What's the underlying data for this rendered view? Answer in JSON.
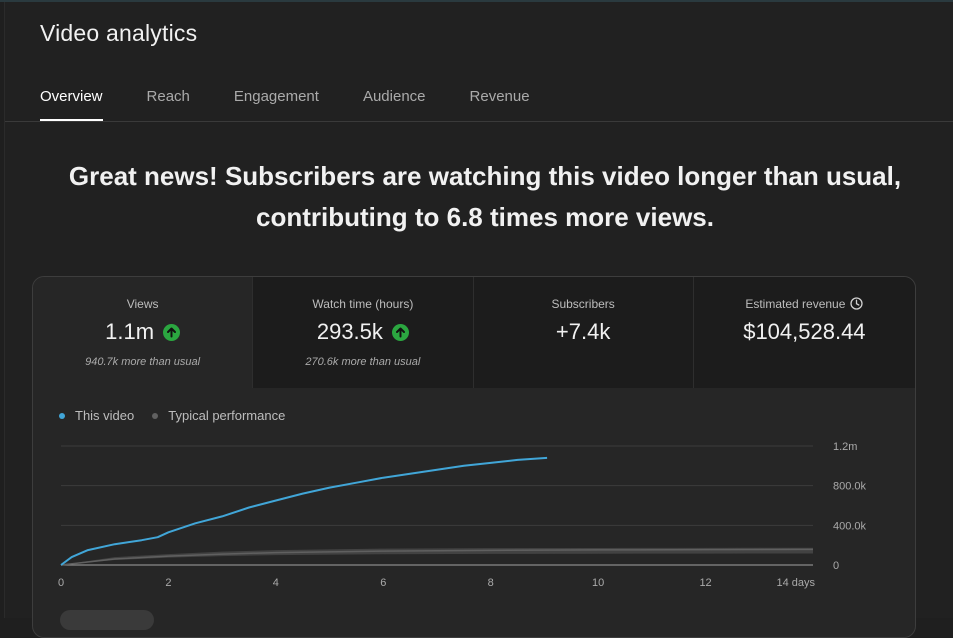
{
  "page": {
    "title": "Video analytics"
  },
  "tabs": [
    {
      "label": "Overview",
      "active": true
    },
    {
      "label": "Reach",
      "active": false
    },
    {
      "label": "Engagement",
      "active": false
    },
    {
      "label": "Audience",
      "active": false
    },
    {
      "label": "Revenue",
      "active": false
    }
  ],
  "headline": "Great news! Subscribers are watching this video longer than usual, contributing to 6.8 times more views.",
  "metrics": [
    {
      "label": "Views",
      "value": "1.1m",
      "trend_icon": "arrow-up-circle-icon",
      "note": "940.7k more than usual"
    },
    {
      "label": "Watch time (hours)",
      "value": "293.5k",
      "trend_icon": "arrow-up-circle-icon",
      "note": "270.6k more than usual"
    },
    {
      "label": "Subscribers",
      "value": "+7.4k"
    },
    {
      "label": "Estimated revenue",
      "value": "$104,528.44",
      "icon": "clock-icon"
    }
  ],
  "colors": {
    "accent": "#2ba640",
    "this_video": "#41a6d8",
    "typical": "#606060",
    "background": "#212121"
  },
  "chart_data": {
    "type": "line",
    "title": "",
    "xlabel": "",
    "ylabel": "",
    "x_unit": "days",
    "xlim": [
      0,
      14
    ],
    "ylim": [
      0,
      1200000
    ],
    "x_ticks": [
      "0",
      "2",
      "4",
      "6",
      "8",
      "10",
      "12",
      "14 days"
    ],
    "y_ticks": [
      "0",
      "400.0k",
      "800.0k",
      "1.2m"
    ],
    "grid": true,
    "legend": "top-left",
    "series": [
      {
        "name": "This video",
        "color": "#41a6d8",
        "x": [
          0,
          0.2,
          0.5,
          1,
          1.5,
          1.8,
          2,
          2.5,
          3,
          3.5,
          4,
          4.5,
          5,
          5.5,
          6,
          6.5,
          7,
          7.5,
          8,
          8.5,
          9.05
        ],
        "y": [
          0,
          80000,
          150000,
          210000,
          250000,
          280000,
          330000,
          420000,
          490000,
          580000,
          650000,
          720000,
          780000,
          830000,
          880000,
          920000,
          960000,
          1000000,
          1030000,
          1060000,
          1080000
        ]
      },
      {
        "name": "Typical performance",
        "color": "#606060",
        "x": [
          0,
          1,
          2,
          3,
          4,
          6,
          8,
          10,
          12,
          14
        ],
        "y": [
          0,
          60000,
          90000,
          110000,
          125000,
          140000,
          148000,
          152000,
          155000,
          157000
        ],
        "band_low": [
          0,
          50000,
          75000,
          90000,
          100000,
          108000,
          112000,
          114000,
          115000,
          116000
        ],
        "band_high": [
          0,
          80000,
          110000,
          135000,
          150000,
          165000,
          170000,
          172000,
          173000,
          174000
        ]
      }
    ]
  }
}
